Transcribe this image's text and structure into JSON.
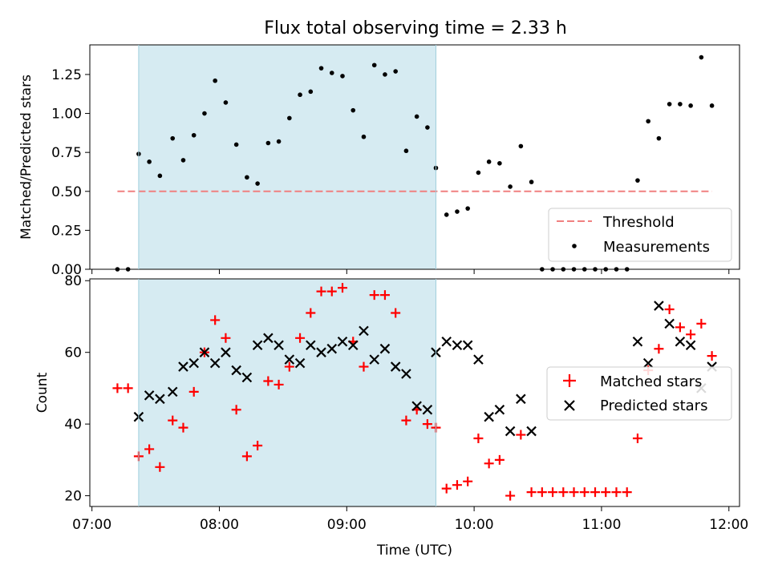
{
  "title": "Flux total observing time = 2.33 h",
  "chart_data": [
    {
      "type": "scatter",
      "panel": "top",
      "ylabel": "Matched/Predicted stars",
      "ylim": [
        0,
        1.44
      ],
      "yticks": [
        0,
        0.25,
        0.5,
        0.75,
        1.0,
        1.25
      ],
      "ytick_labels": [
        "0.00",
        "0.25",
        "0.50",
        "0.75",
        "1.00",
        "1.25"
      ],
      "xlim": [
        "06:59",
        "12:05"
      ],
      "shaded_span": [
        "07:22",
        "09:42"
      ],
      "threshold": {
        "value": 0.5,
        "x_range": [
          "07:12",
          "11:52"
        ]
      },
      "legend": {
        "position": "lower-right",
        "entries": [
          "Threshold",
          "Measurements"
        ]
      },
      "series": [
        {
          "name": "Measurements",
          "x": [
            "07:12",
            "07:17",
            "07:22",
            "07:27",
            "07:32",
            "07:38",
            "07:43",
            "07:48",
            "07:53",
            "07:58",
            "08:03",
            "08:08",
            "08:13",
            "08:18",
            "08:23",
            "08:28",
            "08:33",
            "08:38",
            "08:43",
            "08:48",
            "08:53",
            "08:58",
            "09:03",
            "09:08",
            "09:13",
            "09:18",
            "09:23",
            "09:28",
            "09:33",
            "09:38",
            "09:42",
            "09:47",
            "09:52",
            "09:57",
            "10:02",
            "10:07",
            "10:12",
            "10:17",
            "10:22",
            "10:27",
            "10:32",
            "10:37",
            "10:42",
            "10:47",
            "10:52",
            "10:57",
            "11:02",
            "11:07",
            "11:12",
            "11:17",
            "11:22",
            "11:27",
            "11:32",
            "11:37",
            "11:42",
            "11:47",
            "11:52"
          ],
          "y": [
            0.0,
            0.0,
            0.74,
            0.69,
            0.6,
            0.84,
            0.7,
            0.86,
            1.0,
            1.21,
            1.07,
            0.8,
            0.59,
            0.55,
            0.81,
            0.82,
            0.97,
            1.12,
            1.14,
            1.29,
            1.26,
            1.24,
            1.02,
            0.85,
            1.31,
            1.25,
            1.27,
            0.76,
            0.98,
            0.91,
            0.65,
            0.35,
            0.37,
            0.39,
            0.62,
            0.69,
            0.68,
            0.53,
            0.79,
            0.56,
            0.0,
            0.0,
            0.0,
            0.0,
            0.0,
            0.0,
            0.0,
            0.0,
            0.0,
            0.57,
            0.95,
            0.84,
            1.06,
            1.06,
            1.05,
            1.36,
            1.05
          ]
        }
      ]
    },
    {
      "type": "scatter",
      "panel": "bottom",
      "xlabel": "Time (UTC)",
      "ylabel": "Count",
      "ylim": [
        17,
        80.5
      ],
      "yticks": [
        20,
        40,
        60,
        80
      ],
      "ytick_labels": [
        "20",
        "40",
        "60",
        "80"
      ],
      "xlim": [
        "06:59",
        "12:05"
      ],
      "xticks": [
        "07:00",
        "08:00",
        "09:00",
        "10:00",
        "11:00",
        "12:00"
      ],
      "shaded_span": [
        "07:22",
        "09:42"
      ],
      "legend": {
        "position": "center-right",
        "entries": [
          "Matched stars",
          "Predicted stars"
        ]
      },
      "series": [
        {
          "name": "Matched stars",
          "x": [
            "07:12",
            "07:17",
            "07:22",
            "07:27",
            "07:32",
            "07:38",
            "07:43",
            "07:48",
            "07:53",
            "07:58",
            "08:03",
            "08:08",
            "08:13",
            "08:18",
            "08:23",
            "08:28",
            "08:33",
            "08:38",
            "08:43",
            "08:48",
            "08:53",
            "08:58",
            "09:03",
            "09:08",
            "09:13",
            "09:18",
            "09:23",
            "09:28",
            "09:33",
            "09:38",
            "09:42",
            "09:47",
            "09:52",
            "09:57",
            "10:02",
            "10:07",
            "10:12",
            "10:17",
            "10:22",
            "10:27",
            "10:32",
            "10:37",
            "10:42",
            "10:47",
            "10:52",
            "10:57",
            "11:02",
            "11:07",
            "11:12",
            "11:17",
            "11:22",
            "11:27",
            "11:32",
            "11:37",
            "11:42",
            "11:47",
            "11:52"
          ],
          "y": [
            50,
            50,
            31,
            33,
            28,
            41,
            39,
            49,
            60,
            69,
            64,
            44,
            31,
            34,
            52,
            51,
            56,
            64,
            71,
            77,
            77,
            78,
            63,
            56,
            76,
            76,
            71,
            41,
            44,
            40,
            39,
            22,
            23,
            24,
            36,
            29,
            30,
            20,
            37,
            21,
            21,
            21,
            21,
            21,
            21,
            21,
            21,
            21,
            21,
            36,
            55,
            61,
            72,
            67,
            65,
            68,
            59
          ]
        },
        {
          "name": "Predicted stars",
          "x": [
            "07:22",
            "07:27",
            "07:32",
            "07:38",
            "07:43",
            "07:48",
            "07:53",
            "07:58",
            "08:03",
            "08:08",
            "08:13",
            "08:18",
            "08:23",
            "08:28",
            "08:33",
            "08:38",
            "08:43",
            "08:48",
            "08:53",
            "08:58",
            "09:03",
            "09:08",
            "09:13",
            "09:18",
            "09:23",
            "09:28",
            "09:33",
            "09:38",
            "09:42",
            "09:47",
            "09:52",
            "09:57",
            "10:02",
            "10:07",
            "10:12",
            "10:17",
            "10:22",
            "10:27",
            "11:17",
            "11:22",
            "11:27",
            "11:32",
            "11:37",
            "11:42",
            "11:47",
            "11:52"
          ],
          "y": [
            42,
            48,
            47,
            49,
            56,
            57,
            60,
            57,
            60,
            55,
            53,
            62,
            64,
            62,
            58,
            57,
            62,
            60,
            61,
            63,
            62,
            66,
            58,
            61,
            56,
            54,
            45,
            44,
            60,
            63,
            62,
            62,
            58,
            42,
            44,
            38,
            47,
            38,
            63,
            57,
            73,
            68,
            63,
            62,
            50,
            56
          ]
        }
      ]
    }
  ]
}
